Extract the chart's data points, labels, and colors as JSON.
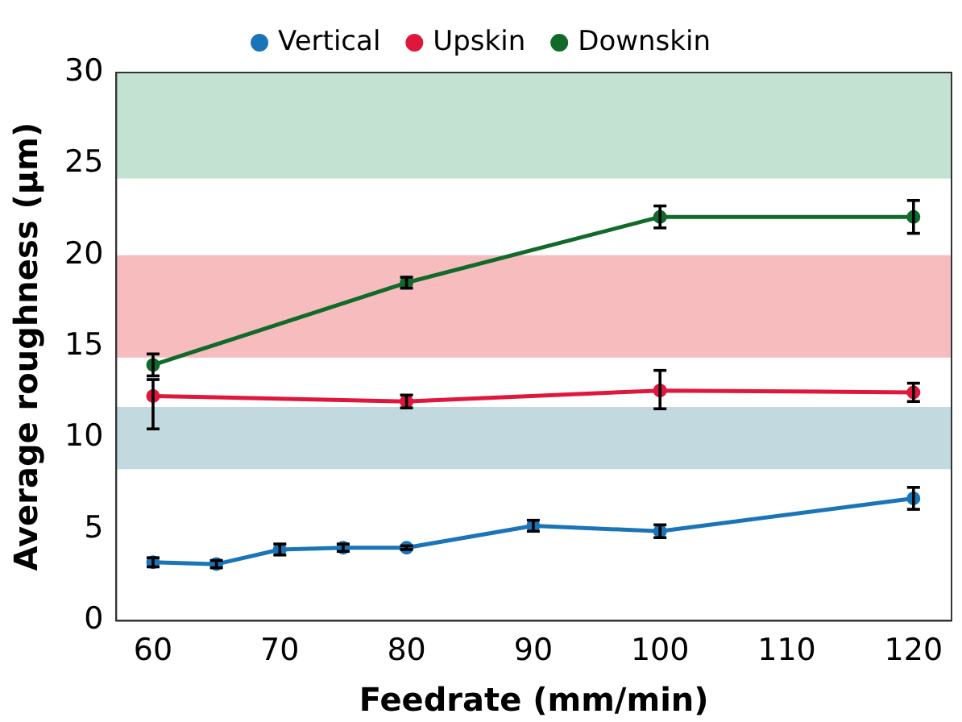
{
  "chart_data": {
    "type": "line",
    "xlabel": "Feedrate (mm/min)",
    "ylabel": "Average roughness (µm)",
    "xlim": [
      57.1,
      123
    ],
    "xticks": [
      60,
      70,
      80,
      90,
      100,
      110,
      120
    ],
    "ylim": [
      0,
      30
    ],
    "yticks": [
      0,
      5,
      10,
      15,
      20,
      25,
      30
    ],
    "grid": false,
    "legend": "top",
    "marker": "circle",
    "line_style": "solid",
    "bands": [
      {
        "axis": "y",
        "from": 24.2,
        "to": 30,
        "color": "#c3e2d1"
      },
      {
        "axis": "y",
        "from": 14.4,
        "to": 20,
        "color": "#f6bcbe"
      },
      {
        "axis": "y",
        "from": 8.3,
        "to": 11.7,
        "color": "#c2d9e0"
      }
    ],
    "series": [
      {
        "name": "Vertical",
        "color": "#1a74b8",
        "x": [
          60,
          65,
          70,
          75,
          80,
          90,
          100,
          120
        ],
        "values": [
          3.2,
          3.1,
          3.9,
          4.0,
          4.0,
          5.2,
          4.9,
          6.7
        ],
        "errors": [
          0.25,
          0.2,
          0.3,
          0.2,
          0.1,
          0.3,
          0.35,
          0.6
        ]
      },
      {
        "name": "Upskin",
        "color": "#e0173c",
        "x": [
          60,
          80,
          100,
          120
        ],
        "values": [
          12.3,
          12.0,
          12.6,
          12.5
        ],
        "errors": [
          [
            10.5,
            13.2
          ],
          0.35,
          [
            11.6,
            13.7
          ],
          0.5
        ]
      },
      {
        "name": "Downskin",
        "color": "#116a2a",
        "x": [
          60,
          80,
          100,
          120
        ],
        "values": [
          14.0,
          18.5,
          22.1,
          22.1
        ],
        "errors": [
          0.6,
          0.3,
          0.6,
          0.9
        ]
      }
    ]
  }
}
